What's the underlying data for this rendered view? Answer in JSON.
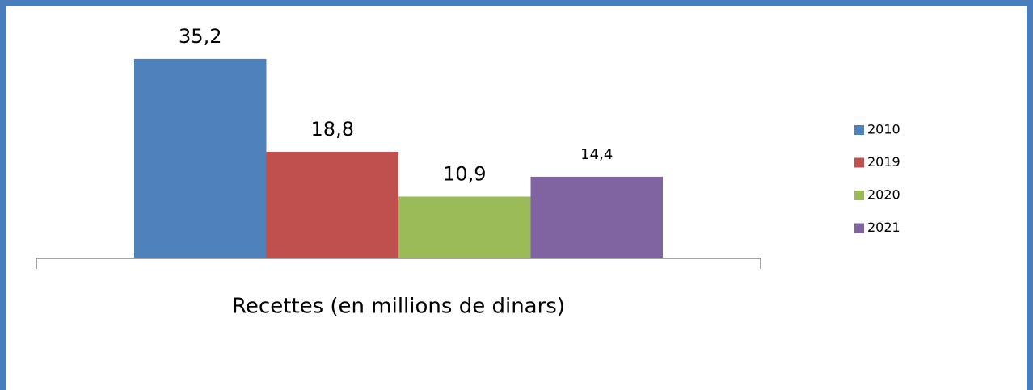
{
  "chart_data": {
    "type": "bar",
    "categories": [
      "Recettes (en millions de dinars)"
    ],
    "series": [
      {
        "name": "2010",
        "color": "#4f81bd",
        "values": [
          35.2
        ],
        "value_labels": [
          "35,2"
        ]
      },
      {
        "name": "2019",
        "color": "#c0504d",
        "values": [
          18.8
        ],
        "value_labels": [
          "18,8"
        ]
      },
      {
        "name": "2020",
        "color": "#9bbb59",
        "values": [
          10.9
        ],
        "value_labels": [
          "10,9"
        ]
      },
      {
        "name": "2021",
        "color": "#8064a2",
        "values": [
          14.4
        ],
        "value_labels": [
          "14,4"
        ]
      }
    ],
    "legend": "right"
  }
}
